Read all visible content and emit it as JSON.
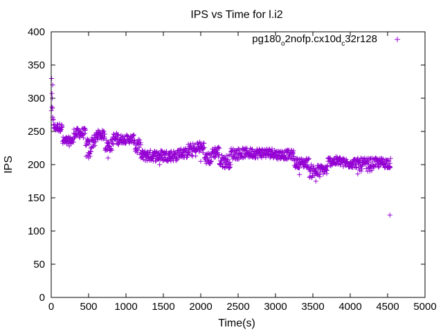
{
  "chart_data": {
    "type": "scatter",
    "title": "IPS vs Time for l.i2",
    "xlabel": "Time(s)",
    "ylabel": "IPS",
    "xlim": [
      0,
      5000
    ],
    "ylim": [
      0,
      400
    ],
    "xticks": [
      0,
      500,
      1000,
      1500,
      2000,
      2500,
      3000,
      3500,
      4000,
      4500,
      5000
    ],
    "yticks": [
      0,
      50,
      100,
      150,
      200,
      250,
      300,
      350,
      400
    ],
    "grid": false,
    "legend_position": "top-right",
    "legend": {
      "parts": [
        {
          "text": "pg180",
          "sub": false
        },
        {
          "text": "o",
          "sub": true
        },
        {
          "text": "2nofp.cx10d",
          "sub": false
        },
        {
          "text": "c",
          "sub": true
        },
        {
          "text": "32r128",
          "sub": false
        }
      ]
    },
    "series": [
      {
        "color": "#9400d3",
        "marker": "plus",
        "segments": [
          [
            0,
            10,
            260,
            330
          ],
          [
            10,
            30,
            262,
            290
          ],
          [
            30,
            150,
            250,
            262
          ],
          [
            150,
            260,
            228,
            242
          ],
          [
            260,
            300,
            230,
            242
          ],
          [
            300,
            460,
            240,
            255
          ],
          [
            460,
            540,
            210,
            240
          ],
          [
            540,
            600,
            225,
            245
          ],
          [
            600,
            720,
            238,
            252
          ],
          [
            720,
            820,
            220,
            238
          ],
          [
            820,
            920,
            230,
            248
          ],
          [
            920,
            1120,
            232,
            245
          ],
          [
            1120,
            1200,
            215,
            238
          ],
          [
            1200,
            1700,
            205,
            222
          ],
          [
            1700,
            1820,
            210,
            225
          ],
          [
            1820,
            1950,
            212,
            232
          ],
          [
            1950,
            2050,
            218,
            235
          ],
          [
            2050,
            2150,
            200,
            218
          ],
          [
            2150,
            2250,
            210,
            228
          ],
          [
            2250,
            2400,
            195,
            215
          ],
          [
            2400,
            2550,
            208,
            225
          ],
          [
            2550,
            3000,
            210,
            225
          ],
          [
            3000,
            3250,
            208,
            222
          ],
          [
            3250,
            3450,
            195,
            210
          ],
          [
            3450,
            3600,
            180,
            200
          ],
          [
            3600,
            3700,
            185,
            200
          ],
          [
            3700,
            3900,
            198,
            212
          ],
          [
            3900,
            4100,
            195,
            210
          ],
          [
            4100,
            4300,
            190,
            210
          ],
          [
            4300,
            4540,
            195,
            210
          ]
        ],
        "outliers": [
          {
            "x": 4530,
            "y": 124
          },
          {
            "x": 3540,
            "y": 175
          },
          {
            "x": 3320,
            "y": 185
          },
          {
            "x": 4100,
            "y": 186
          },
          {
            "x": 500,
            "y": 210
          },
          {
            "x": 760,
            "y": 210
          },
          {
            "x": 1450,
            "y": 200
          },
          {
            "x": 2000,
            "y": 205
          },
          {
            "x": 2380,
            "y": 195
          },
          {
            "x": 4530,
            "y": 195
          },
          {
            "x": 20,
            "y": 320
          },
          {
            "x": 15,
            "y": 300
          }
        ]
      }
    ]
  }
}
